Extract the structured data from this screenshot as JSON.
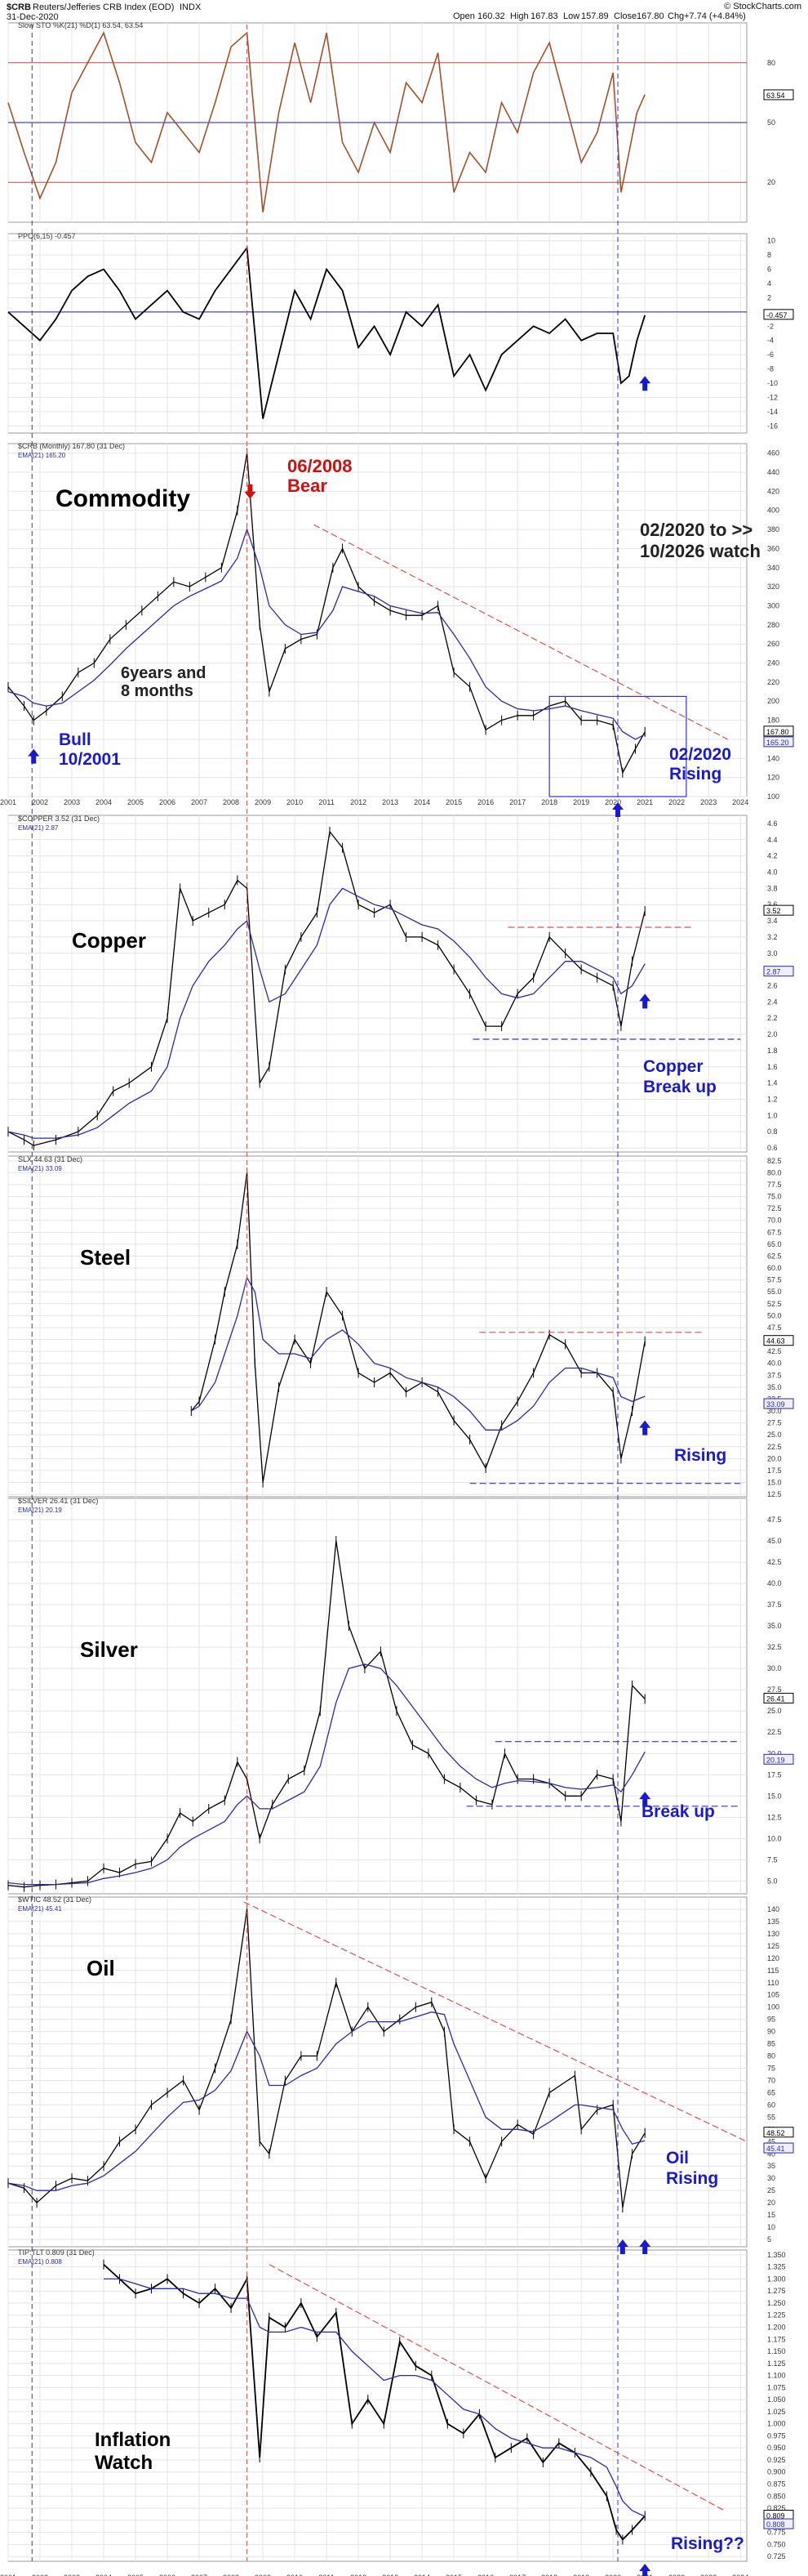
{
  "header": {
    "symbol": "$CRB",
    "name": "Reuters/Jefferies CRB Index (EOD)",
    "exchange": "INDX",
    "date": "31-Dec-2020",
    "open_label": "Open",
    "open": "160.32",
    "high_label": "High",
    "high": "167.83",
    "low_label": "Low",
    "low": "157.89",
    "close_label": "Close",
    "close": "167.80",
    "chg_label": "Chg",
    "chg": "+7.74 (+4.84%)",
    "source": "© StockCharts.com"
  },
  "colors": {
    "price": "#000000",
    "ema": "#2a2aa8",
    "stoch": "#a0522d",
    "trend_red": "#d9534f",
    "guide_blue": "#3333cc",
    "annot_red": "#cc1111",
    "annot_blue": "#1a1acc",
    "grid": "#e4e4e4",
    "ref_line_blue": "#1a1acc",
    "ref_line_brown": "#c0504d"
  },
  "x_axis_years": [
    "2001",
    "2002",
    "2003",
    "2004",
    "2005",
    "2006",
    "2007",
    "2008",
    "2009",
    "2010",
    "2011",
    "2012",
    "2013",
    "2014",
    "2015",
    "2016",
    "2017",
    "2018",
    "2019",
    "2020",
    "2021",
    "2022",
    "2023",
    "2024"
  ],
  "panels": [
    {
      "id": "stoch",
      "legend": "Slow STO %K(21) %D(1) 63.54, 63.54",
      "value_tag": "63.54",
      "ticks": [
        "80",
        "50",
        "20"
      ],
      "ylim": [
        0,
        100
      ]
    },
    {
      "id": "ppo",
      "legend": "PPO(6,15) -0.457",
      "value_tag": "-0.457",
      "ticks": [
        "10",
        "8",
        "6",
        "4",
        "2",
        "0",
        "-2",
        "-4",
        "-6",
        "-8",
        "-10",
        "-12",
        "-14",
        "-16"
      ],
      "ylim": [
        -17,
        11
      ]
    },
    {
      "id": "crb",
      "legend": "$CRB (Monthly) 167.80 (31 Dec)",
      "ema_legend": "EMA(21) 165.20",
      "value_tags": [
        "167.80",
        "165.20"
      ],
      "ticks": [
        "460",
        "440",
        "420",
        "400",
        "380",
        "360",
        "340",
        "320",
        "300",
        "280",
        "260",
        "240",
        "220",
        "200",
        "180",
        "160",
        "140",
        "120",
        "100"
      ],
      "ylim": [
        100,
        470
      ],
      "title": "Commodity"
    },
    {
      "id": "copper",
      "legend": "$COPPER 3.52 (31 Dec)",
      "ema_legend": "EMA(21) 2.87",
      "value_tags": [
        "3.52",
        "2.87"
      ],
      "ticks": [
        "4.6",
        "4.4",
        "4.2",
        "4.0",
        "3.8",
        "3.6",
        "3.4",
        "3.2",
        "3.0",
        "2.8",
        "2.6",
        "2.4",
        "2.2",
        "2.0",
        "1.8",
        "1.6",
        "1.4",
        "1.2",
        "1.0",
        "0.8",
        "0.6"
      ],
      "ylim": [
        0.55,
        4.7
      ],
      "title": "Copper"
    },
    {
      "id": "steel",
      "legend": "SLX 44.63 (31 Dec)",
      "ema_legend": "EMA(21) 33.09",
      "value_tags": [
        "44.63",
        "33.09"
      ],
      "ticks": [
        "82.5",
        "80.0",
        "77.5",
        "75.0",
        "72.5",
        "70.0",
        "67.5",
        "65.0",
        "62.5",
        "60.0",
        "57.5",
        "55.0",
        "52.5",
        "50.0",
        "47.5",
        "45.0",
        "42.5",
        "40.0",
        "37.5",
        "35.0",
        "32.5",
        "30.0",
        "27.5",
        "25.0",
        "22.5",
        "20.0",
        "17.5",
        "15.0",
        "12.5"
      ],
      "ylim": [
        12,
        83.5
      ],
      "title": "Steel"
    },
    {
      "id": "silver",
      "legend": "$SILVER 26.41 (31 Dec)",
      "ema_legend": "EMA(21) 20.19",
      "value_tags": [
        "26.41",
        "20.19"
      ],
      "ticks": [
        "47.5",
        "45.0",
        "42.5",
        "40.0",
        "37.5",
        "35.0",
        "32.5",
        "30.0",
        "27.5",
        "25.0",
        "22.5",
        "20.0",
        "17.5",
        "15.0",
        "12.5",
        "10.0",
        "7.5",
        "5.0"
      ],
      "ylim": [
        3.5,
        50
      ],
      "title": "Silver"
    },
    {
      "id": "oil",
      "legend": "$WTIC 48.52 (31 Dec)",
      "ema_legend": "EMA(21) 45.41",
      "value_tags": [
        "48.52",
        "45.41"
      ],
      "ticks": [
        "140",
        "135",
        "130",
        "125",
        "120",
        "115",
        "110",
        "105",
        "100",
        "95",
        "90",
        "85",
        "80",
        "75",
        "70",
        "65",
        "60",
        "55",
        "50",
        "45",
        "40",
        "35",
        "30",
        "25",
        "20",
        "15",
        "10",
        "5"
      ],
      "ylim": [
        2,
        145
      ],
      "title": "Oil"
    },
    {
      "id": "tip",
      "legend": "TIP:TLT 0.809 (31 Dec)",
      "ema_legend": "EMA(21) 0.808",
      "value_tags": [
        "0.809",
        "0.808"
      ],
      "ticks": [
        "1.350",
        "1.325",
        "1.300",
        "1.275",
        "1.250",
        "1.225",
        "1.200",
        "1.175",
        "1.150",
        "1.125",
        "1.100",
        "1.075",
        "1.050",
        "1.025",
        "1.000",
        "0.975",
        "0.950",
        "0.925",
        "0.900",
        "0.875",
        "0.850",
        "0.825",
        "0.800",
        "0.775",
        "0.750",
        "0.725"
      ],
      "ylim": [
        0.715,
        1.36
      ],
      "title": "Inflation Watch"
    }
  ],
  "annotations": {
    "bear": "06/2008\nBear",
    "watch": "02/2020 to >>\n10/2026 watch",
    "six_years": "6years and\n8 months",
    "bull": "Bull\n10/2001",
    "rising_crb": "02/2020\nRising",
    "copper_break": "Copper\nBreak up",
    "steel_rising": "Rising",
    "silver_break": "Break up",
    "oil_rising": "Oil\nRising",
    "tip_rising": "Rising??"
  },
  "chart_data": [
    {
      "type": "line",
      "name": "Slow STO %K(21) %D(1)",
      "x": [
        2001.0,
        2001.5,
        2002.0,
        2002.5,
        2003.0,
        2003.5,
        2004.0,
        2004.5,
        2005.0,
        2005.5,
        2006.0,
        2006.5,
        2007.0,
        2007.5,
        2008.0,
        2008.5,
        2009.0,
        2009.5,
        2010.0,
        2010.5,
        2011.0,
        2011.5,
        2012.0,
        2012.5,
        2013.0,
        2013.5,
        2014.0,
        2014.5,
        2015.0,
        2015.5,
        2016.0,
        2016.5,
        2017.0,
        2017.5,
        2018.0,
        2018.5,
        2019.0,
        2019.5,
        2020.0,
        2020.25,
        2020.5,
        2020.75,
        2021.0
      ],
      "y": [
        60,
        35,
        12,
        30,
        65,
        80,
        95,
        70,
        40,
        30,
        55,
        45,
        35,
        60,
        88,
        95,
        5,
        55,
        90,
        60,
        95,
        40,
        25,
        50,
        35,
        70,
        60,
        85,
        15,
        35,
        25,
        60,
        45,
        75,
        90,
        60,
        30,
        45,
        75,
        15,
        35,
        55,
        64
      ]
    },
    {
      "type": "line",
      "name": "PPO(6,15)",
      "x": [
        2001.0,
        2001.5,
        2002.0,
        2002.5,
        2003.0,
        2003.5,
        2004.0,
        2004.5,
        2005.0,
        2005.5,
        2006.0,
        2006.5,
        2007.0,
        2007.5,
        2008.0,
        2008.5,
        2009.0,
        2009.5,
        2010.0,
        2010.5,
        2011.0,
        2011.5,
        2012.0,
        2012.5,
        2013.0,
        2013.5,
        2014.0,
        2014.5,
        2015.0,
        2015.5,
        2016.0,
        2016.5,
        2017.0,
        2017.5,
        2018.0,
        2018.5,
        2019.0,
        2019.5,
        2020.0,
        2020.25,
        2020.5,
        2020.75,
        2021.0
      ],
      "y": [
        0,
        -2,
        -4,
        -1,
        3,
        5,
        6,
        3,
        -1,
        1,
        3,
        0,
        -1,
        3,
        6,
        9,
        -15,
        -6,
        3,
        -1,
        6,
        3,
        -5,
        -2,
        -6,
        0,
        -2,
        1,
        -9,
        -6,
        -11,
        -6,
        -4,
        -2,
        -3,
        -1,
        -4,
        -3,
        -3,
        -10,
        -9,
        -4,
        -0.457
      ]
    },
    {
      "type": "line",
      "name": "$CRB (Monthly)",
      "x": [
        2001.0,
        2001.5,
        2001.8,
        2002.2,
        2002.7,
        2003.2,
        2003.7,
        2004.2,
        2004.7,
        2005.2,
        2005.7,
        2006.2,
        2006.7,
        2007.2,
        2007.7,
        2008.2,
        2008.5,
        2008.9,
        2009.2,
        2009.7,
        2010.2,
        2010.7,
        2011.2,
        2011.5,
        2012.0,
        2012.5,
        2013.0,
        2013.5,
        2014.0,
        2014.5,
        2015.0,
        2015.5,
        2016.0,
        2016.5,
        2017.0,
        2017.5,
        2018.0,
        2018.5,
        2019.0,
        2019.5,
        2020.0,
        2020.3,
        2020.7,
        2021.0
      ],
      "y": [
        215,
        195,
        180,
        190,
        205,
        230,
        240,
        265,
        280,
        295,
        310,
        325,
        320,
        330,
        340,
        400,
        460,
        280,
        210,
        255,
        265,
        270,
        340,
        360,
        320,
        305,
        295,
        290,
        290,
        300,
        230,
        215,
        170,
        180,
        185,
        185,
        195,
        200,
        180,
        180,
        175,
        125,
        150,
        167.8
      ],
      "ema": [
        210,
        205,
        198,
        195,
        198,
        210,
        222,
        238,
        255,
        270,
        285,
        300,
        310,
        318,
        326,
        350,
        380,
        340,
        300,
        280,
        270,
        272,
        295,
        320,
        315,
        310,
        300,
        296,
        292,
        293,
        270,
        245,
        215,
        200,
        192,
        190,
        192,
        195,
        190,
        186,
        182,
        168,
        160,
        165.2
      ]
    },
    {
      "type": "line",
      "name": "$COPPER",
      "x": [
        2001.0,
        2001.5,
        2001.8,
        2002.5,
        2003.2,
        2003.8,
        2004.3,
        2004.8,
        2005.5,
        2006.0,
        2006.4,
        2006.8,
        2007.3,
        2007.8,
        2008.2,
        2008.5,
        2008.9,
        2009.2,
        2009.7,
        2010.2,
        2010.7,
        2011.1,
        2011.5,
        2012.0,
        2012.5,
        2013.0,
        2013.5,
        2014.0,
        2014.5,
        2015.0,
        2015.5,
        2016.0,
        2016.5,
        2017.0,
        2017.5,
        2018.0,
        2018.5,
        2019.0,
        2019.5,
        2020.0,
        2020.25,
        2020.6,
        2021.0
      ],
      "y": [
        0.8,
        0.7,
        0.63,
        0.7,
        0.8,
        1.0,
        1.3,
        1.4,
        1.6,
        2.2,
        3.8,
        3.4,
        3.5,
        3.6,
        3.9,
        3.8,
        1.4,
        1.6,
        2.8,
        3.2,
        3.5,
        4.5,
        4.3,
        3.6,
        3.5,
        3.6,
        3.2,
        3.2,
        3.1,
        2.8,
        2.5,
        2.1,
        2.1,
        2.5,
        2.7,
        3.2,
        3.0,
        2.8,
        2.7,
        2.6,
        2.1,
        2.9,
        3.52
      ],
      "ema": [
        0.8,
        0.76,
        0.72,
        0.72,
        0.76,
        0.85,
        1.0,
        1.15,
        1.3,
        1.6,
        2.2,
        2.6,
        2.9,
        3.1,
        3.3,
        3.4,
        2.8,
        2.4,
        2.5,
        2.8,
        3.1,
        3.6,
        3.8,
        3.7,
        3.6,
        3.55,
        3.45,
        3.35,
        3.3,
        3.15,
        2.95,
        2.7,
        2.5,
        2.45,
        2.5,
        2.7,
        2.9,
        2.9,
        2.8,
        2.7,
        2.5,
        2.6,
        2.87
      ]
    },
    {
      "type": "line",
      "name": "SLX",
      "x": [
        2006.75,
        2007.0,
        2007.5,
        2007.8,
        2008.2,
        2008.5,
        2008.75,
        2009.0,
        2009.5,
        2010.0,
        2010.5,
        2011.0,
        2011.5,
        2012.0,
        2012.5,
        2013.0,
        2013.5,
        2014.0,
        2014.5,
        2015.0,
        2015.5,
        2016.0,
        2016.5,
        2017.0,
        2017.5,
        2018.0,
        2018.5,
        2019.0,
        2019.5,
        2020.0,
        2020.25,
        2020.6,
        2021.0
      ],
      "y": [
        30,
        32,
        45,
        55,
        65,
        80,
        40,
        15,
        35,
        45,
        40,
        55,
        50,
        38,
        36,
        38,
        34,
        36,
        34,
        28,
        24,
        18,
        27,
        32,
        38,
        46,
        44,
        38,
        38,
        34,
        20,
        30,
        44.63
      ],
      "ema": [
        30,
        31,
        36,
        42,
        50,
        58,
        55,
        45,
        42,
        42,
        41,
        45,
        47,
        44,
        40,
        39,
        37,
        36,
        35,
        33,
        30,
        26,
        26,
        28,
        31,
        36,
        39,
        39,
        38,
        37,
        33,
        32,
        33.09
      ]
    },
    {
      "type": "line",
      "name": "$SILVER",
      "x": [
        2001.0,
        2001.5,
        2002.0,
        2002.5,
        2003.0,
        2003.5,
        2004.0,
        2004.5,
        2005.0,
        2005.5,
        2006.0,
        2006.4,
        2006.8,
        2007.3,
        2007.8,
        2008.2,
        2008.5,
        2008.9,
        2009.3,
        2009.8,
        2010.3,
        2010.8,
        2011.3,
        2011.7,
        2012.2,
        2012.7,
        2013.2,
        2013.7,
        2014.2,
        2014.7,
        2015.2,
        2015.7,
        2016.2,
        2016.6,
        2017.0,
        2017.5,
        2018.0,
        2018.5,
        2019.0,
        2019.5,
        2020.0,
        2020.25,
        2020.6,
        2021.0
      ],
      "y": [
        4.5,
        4.3,
        4.5,
        4.6,
        4.8,
        5.0,
        6.5,
        6.0,
        7.0,
        7.3,
        10.0,
        13.0,
        12.0,
        13.5,
        14.5,
        19.0,
        17.0,
        10.0,
        14.0,
        17.0,
        18.0,
        25.0,
        45.0,
        35.0,
        30.0,
        32.0,
        25.0,
        21.0,
        20.0,
        17.0,
        16.0,
        14.5,
        14.0,
        20.0,
        17.0,
        17.0,
        16.5,
        15.0,
        15.0,
        17.5,
        17.0,
        12.0,
        28.0,
        26.41
      ],
      "ema": [
        4.8,
        4.6,
        4.6,
        4.6,
        4.7,
        4.8,
        5.3,
        5.6,
        6.0,
        6.5,
        7.5,
        9.0,
        10.0,
        11.0,
        12.0,
        14.0,
        15.0,
        13.5,
        13.5,
        14.5,
        15.5,
        18.5,
        26.0,
        30.0,
        30.5,
        30.0,
        28.0,
        25.5,
        23.0,
        20.5,
        18.5,
        17.0,
        16.0,
        16.5,
        16.8,
        16.7,
        16.5,
        16.0,
        15.8,
        16.0,
        16.3,
        15.5,
        17.5,
        20.19
      ]
    },
    {
      "type": "line",
      "name": "$WTIC",
      "x": [
        2001.0,
        2001.5,
        2001.9,
        2002.5,
        2003.0,
        2003.5,
        2004.0,
        2004.5,
        2005.0,
        2005.5,
        2006.0,
        2006.5,
        2007.0,
        2007.5,
        2008.0,
        2008.5,
        2008.9,
        2009.2,
        2009.7,
        2010.2,
        2010.7,
        2011.3,
        2011.8,
        2012.3,
        2012.8,
        2013.3,
        2013.8,
        2014.3,
        2014.7,
        2015.0,
        2015.5,
        2016.0,
        2016.5,
        2017.0,
        2017.5,
        2018.0,
        2018.8,
        2019.0,
        2019.5,
        2020.0,
        2020.3,
        2020.6,
        2021.0
      ],
      "y": [
        28,
        26,
        20,
        27,
        30,
        29,
        35,
        45,
        50,
        60,
        65,
        70,
        58,
        75,
        95,
        140,
        45,
        40,
        70,
        80,
        80,
        110,
        90,
        100,
        90,
        95,
        100,
        102,
        90,
        50,
        45,
        30,
        45,
        52,
        48,
        65,
        72,
        50,
        58,
        60,
        18,
        40,
        48.52
      ],
      "ema": [
        28,
        27,
        25,
        25,
        27,
        28,
        31,
        36,
        41,
        48,
        55,
        61,
        62,
        66,
        74,
        90,
        80,
        68,
        68,
        72,
        75,
        85,
        90,
        94,
        94,
        94,
        96,
        98,
        97,
        85,
        70,
        55,
        50,
        50,
        49,
        53,
        60,
        60,
        59,
        58,
        50,
        44,
        45.41
      ]
    },
    {
      "type": "line",
      "name": "TIP:TLT",
      "x": [
        2004.0,
        2004.5,
        2005.0,
        2005.5,
        2006.0,
        2006.5,
        2007.0,
        2007.5,
        2008.0,
        2008.5,
        2008.9,
        2009.2,
        2009.7,
        2010.2,
        2010.7,
        2011.3,
        2011.8,
        2012.3,
        2012.8,
        2013.3,
        2013.8,
        2014.3,
        2014.8,
        2015.3,
        2015.8,
        2016.3,
        2016.8,
        2017.3,
        2017.8,
        2018.3,
        2018.8,
        2019.3,
        2019.8,
        2020.1,
        2020.3,
        2020.6,
        2021.0
      ],
      "y": [
        1.33,
        1.3,
        1.27,
        1.28,
        1.3,
        1.27,
        1.25,
        1.28,
        1.24,
        1.3,
        0.93,
        1.22,
        1.2,
        1.25,
        1.18,
        1.23,
        1.0,
        1.05,
        1.0,
        1.17,
        1.12,
        1.1,
        1.0,
        0.98,
        1.02,
        0.93,
        0.95,
        0.97,
        0.92,
        0.96,
        0.94,
        0.9,
        0.85,
        0.78,
        0.76,
        0.78,
        0.809
      ],
      "ema": [
        1.3,
        1.3,
        1.29,
        1.28,
        1.28,
        1.28,
        1.27,
        1.27,
        1.26,
        1.26,
        1.2,
        1.19,
        1.19,
        1.2,
        1.19,
        1.19,
        1.15,
        1.12,
        1.09,
        1.1,
        1.1,
        1.09,
        1.06,
        1.03,
        1.02,
        0.99,
        0.97,
        0.96,
        0.95,
        0.95,
        0.94,
        0.93,
        0.91,
        0.87,
        0.84,
        0.82,
        0.808
      ]
    }
  ]
}
